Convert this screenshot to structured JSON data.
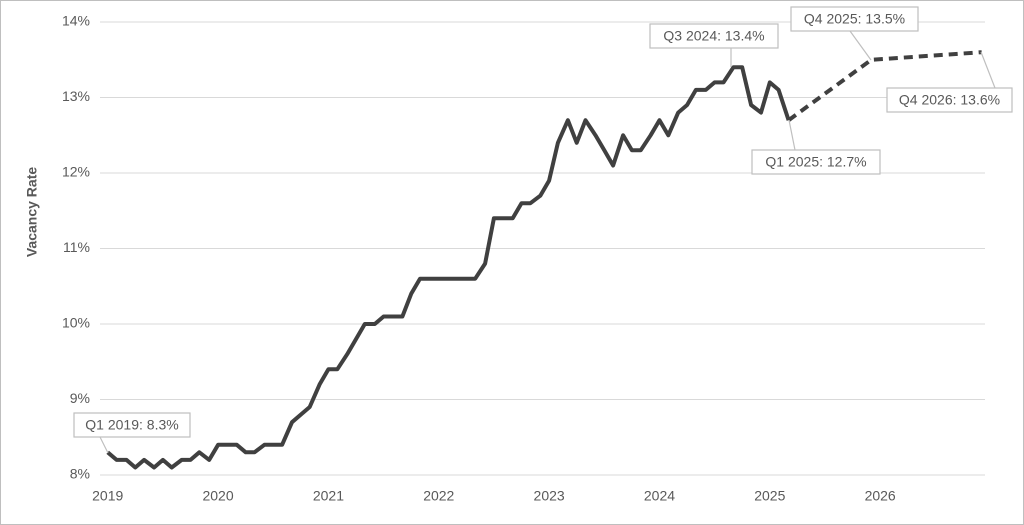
{
  "chart_data": {
    "type": "line",
    "y_label": "Vacancy Rate",
    "xlim": [
      2018.93,
      2026.95
    ],
    "xticks": [
      2019,
      2020,
      2021,
      2022,
      2023,
      2024,
      2025,
      2026
    ],
    "ylim": [
      8,
      14
    ],
    "yticks": [
      {
        "value": 8,
        "label": "8%"
      },
      {
        "value": 9,
        "label": "9%"
      },
      {
        "value": 10,
        "label": "10%"
      },
      {
        "value": 11,
        "label": "11%"
      },
      {
        "value": 12,
        "label": "12%"
      },
      {
        "value": 13,
        "label": "13%"
      },
      {
        "value": 14,
        "label": "14%"
      }
    ],
    "grid": true,
    "series": [
      {
        "color": "#404040",
        "dashed": false,
        "x": [
          2019,
          2019.08,
          2019.17,
          2019.25,
          2019.33,
          2019.42,
          2019.5,
          2019.58,
          2019.67,
          2019.75,
          2019.83,
          2019.92,
          2020,
          2020.08,
          2020.17,
          2020.25,
          2020.33,
          2020.42,
          2020.5,
          2020.58,
          2020.67,
          2020.75,
          2020.83,
          2020.92,
          2021,
          2021.08,
          2021.17,
          2021.25,
          2021.33,
          2021.42,
          2021.5,
          2021.58,
          2021.67,
          2021.75,
          2021.83,
          2021.92,
          2022,
          2022.08,
          2022.17,
          2022.25,
          2022.33,
          2022.42,
          2022.5,
          2022.58,
          2022.67,
          2022.75,
          2022.83,
          2022.92,
          2023,
          2023.08,
          2023.17,
          2023.25,
          2023.33,
          2023.42,
          2023.5,
          2023.58,
          2023.67,
          2023.75,
          2023.83,
          2023.92,
          2024,
          2024.08,
          2024.17,
          2024.25,
          2024.33,
          2024.42,
          2024.5,
          2024.58,
          2024.67,
          2024.75,
          2024.83,
          2024.92,
          2025,
          2025.08,
          2025.17
        ],
        "values": [
          8.3,
          8.2,
          8.2,
          8.1,
          8.2,
          8.1,
          8.2,
          8.1,
          8.2,
          8.2,
          8.3,
          8.2,
          8.4,
          8.4,
          8.4,
          8.3,
          8.3,
          8.4,
          8.4,
          8.4,
          8.7,
          8.8,
          8.9,
          9.2,
          9.4,
          9.4,
          9.6,
          9.8,
          10.0,
          10.0,
          10.1,
          10.1,
          10.1,
          10.4,
          10.6,
          10.6,
          10.6,
          10.6,
          10.6,
          10.6,
          10.6,
          10.8,
          11.4,
          11.4,
          11.4,
          11.6,
          11.6,
          11.7,
          11.9,
          12.4,
          12.7,
          12.4,
          12.7,
          12.5,
          12.3,
          12.1,
          12.5,
          12.3,
          12.3,
          12.5,
          12.7,
          12.5,
          12.8,
          12.9,
          13.1,
          13.1,
          13.2,
          13.2,
          13.4,
          13.4,
          12.9,
          12.8,
          13.2,
          13.1,
          12.7
        ]
      },
      {
        "color": "#404040",
        "dashed": true,
        "x": [
          2025.17,
          2025.92,
          2026.92
        ],
        "values": [
          12.7,
          13.5,
          13.6
        ]
      }
    ],
    "annotations": [
      "Q1 2019: 8.3%",
      "Q3 2024: 13.4%",
      "Q4 2025: 13.5%",
      "Q4 2026: 13.6%",
      "Q1 2025: 12.7%"
    ]
  }
}
